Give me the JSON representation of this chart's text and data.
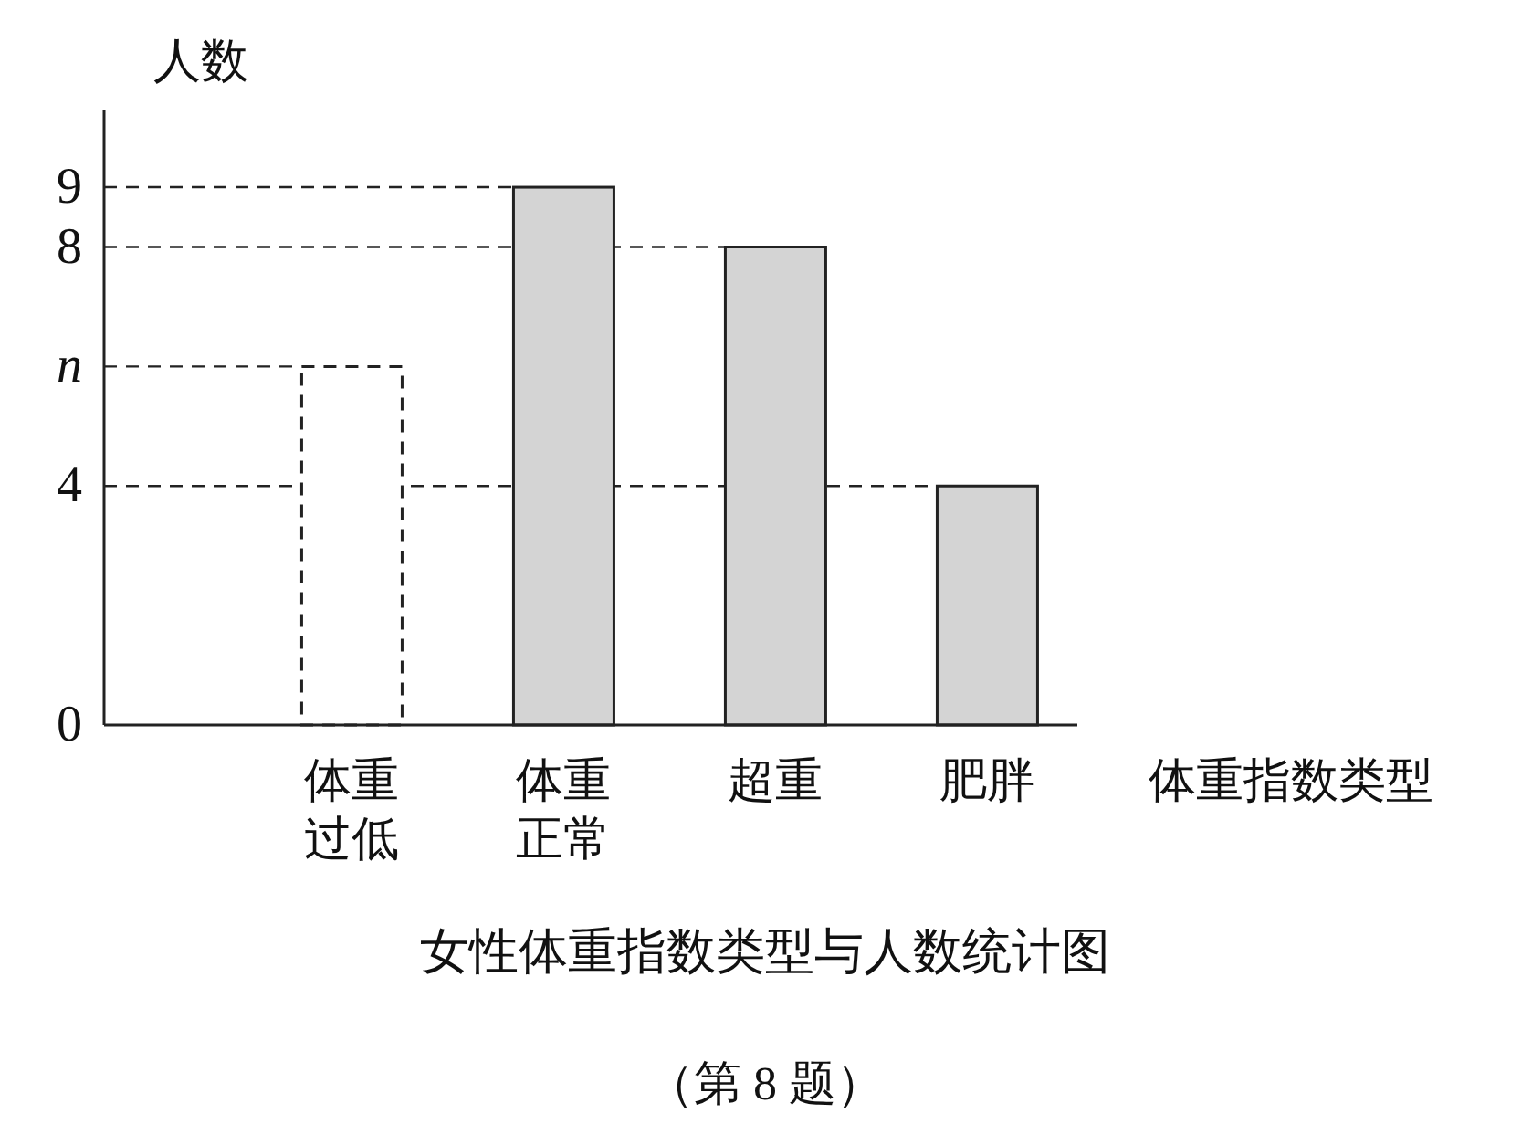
{
  "chart_data": {
    "type": "bar",
    "title": "女性体重指数类型与人数统计图",
    "xlabel": "体重指数类型",
    "ylabel": "人数",
    "categories": [
      "体重过低",
      "体重正常",
      "超重",
      "肥胖"
    ],
    "series": [
      {
        "values": [
          6,
          null,
          null,
          null
        ],
        "color": "#ffffff",
        "line_style": "dashed"
      },
      {
        "values": [
          null,
          9,
          8,
          4
        ],
        "color": "#d4d4d4",
        "line_style": "solid"
      }
    ],
    "ylim": [
      0,
      10.3
    ],
    "yticks": [
      0,
      4,
      {
        "value": 6,
        "label": "n"
      },
      8,
      9
    ],
    "ref_lines": [
      {
        "axis": "y",
        "value": 9,
        "line_style": "dashed"
      },
      {
        "axis": "y",
        "value": 8,
        "line_style": "dashed"
      },
      {
        "axis": "y",
        "value": 6,
        "line_style": "dashed"
      },
      {
        "axis": "y",
        "value": 4,
        "line_style": "dashed"
      }
    ],
    "annotations": [
      "（第 8 题）"
    ],
    "grid": false
  }
}
